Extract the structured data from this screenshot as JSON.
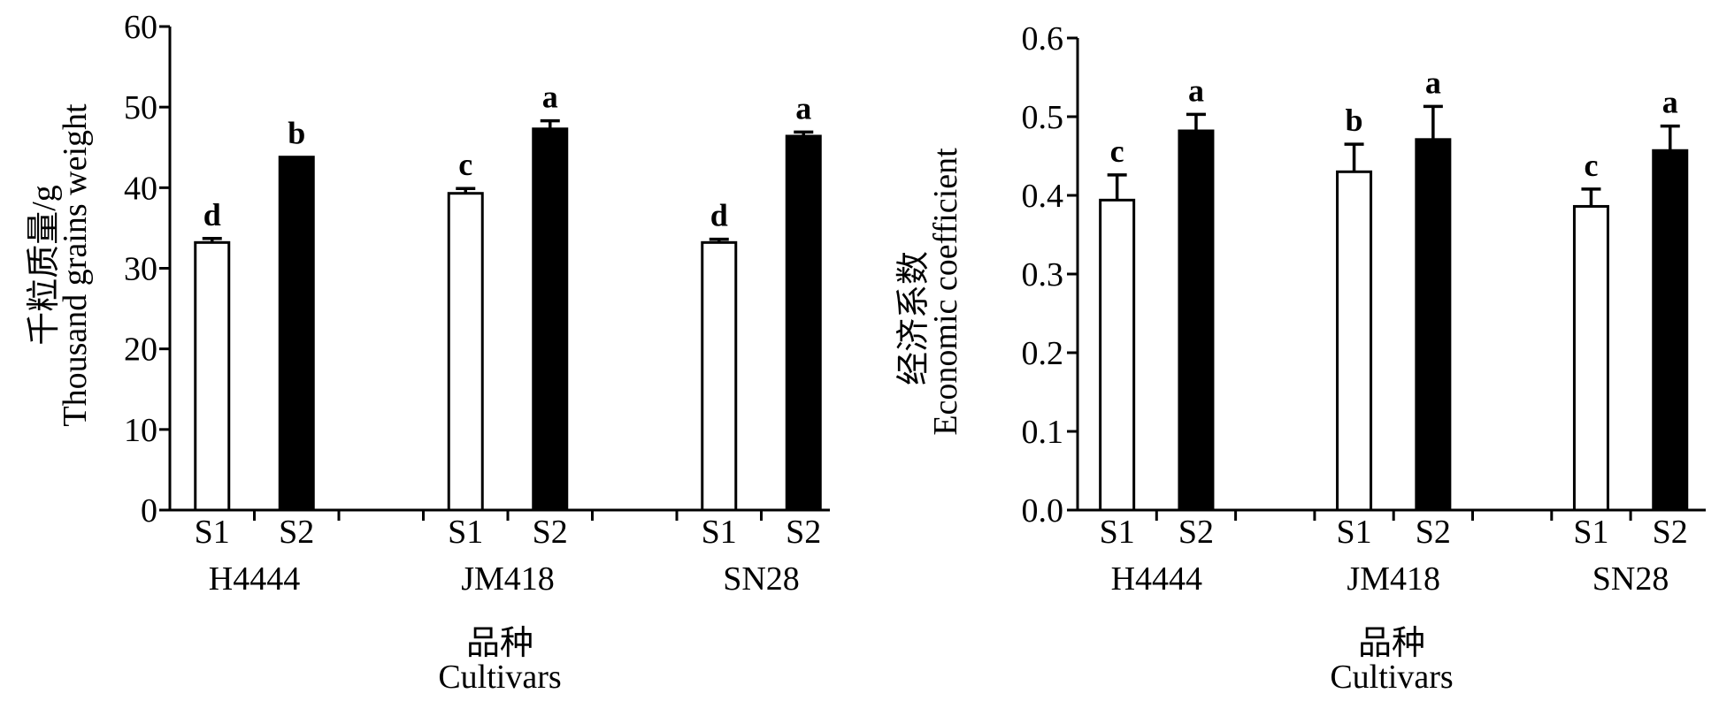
{
  "chart_data": [
    {
      "type": "bar",
      "ylabel": [
        "千粒质量/g",
        "Thousand grains weight"
      ],
      "xlabel": [
        "品种",
        "Cultivars"
      ],
      "categories": [
        "H4444",
        "JM418",
        "SN28"
      ],
      "ylim": [
        0,
        60
      ],
      "yticks": [
        "0",
        "10",
        "20",
        "30",
        "40",
        "50",
        "60"
      ],
      "grid": false,
      "series": [
        {
          "name": "S1",
          "values": [
            33.2,
            39.3,
            33.2
          ],
          "errors": [
            0.5,
            0.6,
            0.4
          ],
          "letters": [
            "d",
            "c",
            "d"
          ],
          "fill": "#ffffff"
        },
        {
          "name": "S2",
          "values": [
            43.8,
            47.3,
            46.4
          ],
          "errors": [
            0,
            1.0,
            0.5
          ],
          "letters": [
            "b",
            "a",
            "a"
          ],
          "fill": "#000000"
        }
      ]
    },
    {
      "type": "bar",
      "ylabel": [
        "经济系数",
        "Economic coefficient"
      ],
      "xlabel": [
        "品种",
        "Cultivars"
      ],
      "categories": [
        "H4444",
        "JM418",
        "SN28"
      ],
      "ylim": [
        0,
        0.6
      ],
      "yticks": [
        "0.0",
        "0.1",
        "0.2",
        "0.3",
        "0.4",
        "0.5",
        "0.6"
      ],
      "grid": false,
      "series": [
        {
          "name": "S1",
          "values": [
            0.394,
            0.43,
            0.386
          ],
          "errors": [
            0.032,
            0.035,
            0.022
          ],
          "letters": [
            "c",
            "b",
            "c"
          ],
          "fill": "#ffffff"
        },
        {
          "name": "S2",
          "values": [
            0.482,
            0.471,
            0.457
          ],
          "errors": [
            0.021,
            0.042,
            0.031
          ],
          "letters": [
            "a",
            "a",
            "a"
          ],
          "fill": "#000000"
        }
      ]
    }
  ]
}
